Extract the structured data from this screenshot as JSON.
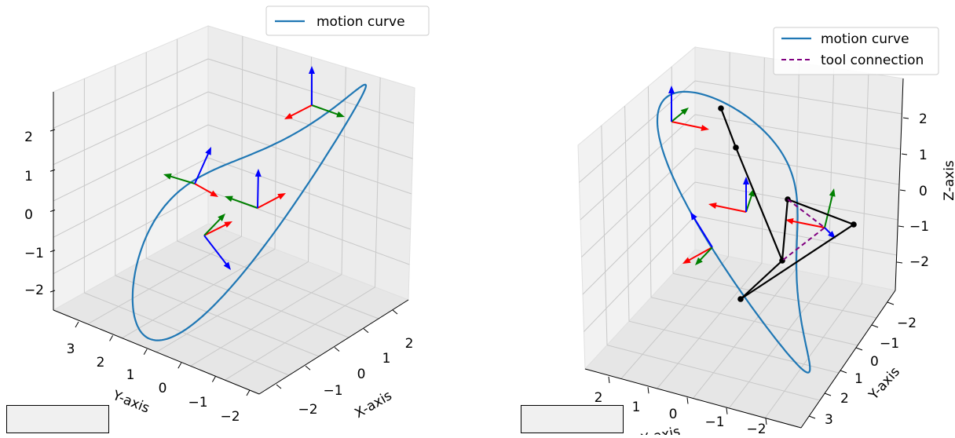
{
  "legend_left": [
    "motion curve"
  ],
  "legend_right": [
    "motion curve",
    "tool connection"
  ],
  "colors": {
    "curve": "#1f77b4",
    "connection": "#800080",
    "chain": "#000000",
    "x_axis_arrow": "#ff0000",
    "y_axis_arrow": "#008000",
    "z_axis_arrow": "#0000ff",
    "pane": "#f2f2f2",
    "grid": "#c8c8c8"
  },
  "chart_data": [
    {
      "type": "line3d",
      "xlabel": "X-axis",
      "ylabel": "Y-axis",
      "zlabel": "",
      "x_ticks": [
        "−2",
        "−1",
        "0",
        "1",
        "2"
      ],
      "y_ticks": [
        "3",
        "2",
        "1",
        "0",
        "−1",
        "−2"
      ],
      "z_ticks": [
        "2",
        "1",
        "0",
        "−1",
        "−2"
      ],
      "xlim": [
        -2.5,
        2.5
      ],
      "ylim": [
        -2.5,
        3.5
      ],
      "zlim": [
        -2.5,
        2.5
      ],
      "series": [
        {
          "name": "motion curve",
          "kind": "parametric",
          "x": "2 cos t",
          "y": "1.5 sin t + 0.5",
          "z": "2 sin 2t"
        }
      ],
      "frames": 5
    },
    {
      "type": "line3d",
      "xlabel": "X-axis",
      "ylabel": "Y-axis",
      "zlabel": "Z-axis",
      "x_ticks": [
        "2",
        "1",
        "0",
        "−1",
        "−2"
      ],
      "y_ticks": [
        "−2",
        "−1",
        "0",
        "1",
        "2",
        "3"
      ],
      "z_ticks": [
        "2",
        "1",
        "0",
        "−1",
        "−2"
      ],
      "xlim": [
        -2.5,
        2.5
      ],
      "ylim": [
        -2.5,
        3.5
      ],
      "zlim": [
        -2.5,
        2.5
      ],
      "series": [
        {
          "name": "motion curve",
          "kind": "parametric",
          "x": "2 cos t",
          "y": "1.5 sin t + 0.5",
          "z": "2 sin 2t"
        },
        {
          "name": "tool connection",
          "style": "dashed"
        }
      ],
      "chain_joints": [
        [
          0.5,
          -0.5,
          2.3
        ],
        [
          0.5,
          0.0,
          1.2
        ],
        [
          0.3,
          3.2,
          -2.0
        ],
        [
          -1.0,
          1.6,
          0.4
        ],
        [
          -0.9,
          2.6,
          -0.6
        ],
        [
          -1.5,
          2.5,
          -0.9
        ],
        [
          0.3,
          3.2,
          -2.0
        ]
      ]
    }
  ]
}
